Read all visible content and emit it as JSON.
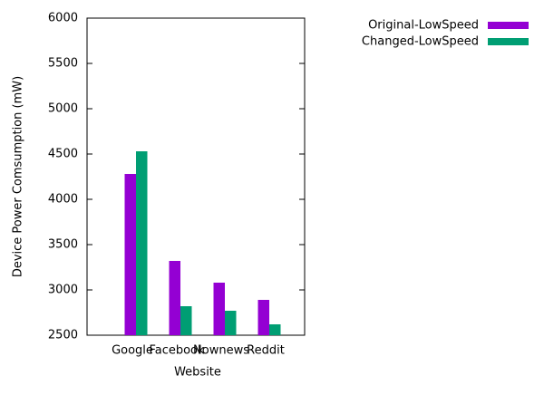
{
  "chart_data": {
    "type": "bar",
    "x_label": "Website",
    "y_label": "Device Power Comsumption (mW)",
    "categories": [
      "Google",
      "Facebook",
      "Nownews",
      "Reddit"
    ],
    "series": [
      {
        "name": "Original-LowSpeed",
        "color": "#9400d3",
        "values": [
          4280,
          3320,
          3080,
          2890
        ]
      },
      {
        "name": "Changed-LowSpeed",
        "color": "#009e73",
        "values": [
          4530,
          2820,
          2770,
          2620
        ]
      }
    ],
    "ylim": [
      2500,
      6000
    ],
    "yticks": [
      2500,
      3000,
      3500,
      4000,
      4500,
      5000,
      5500,
      6000
    ],
    "legend": "top-right"
  }
}
